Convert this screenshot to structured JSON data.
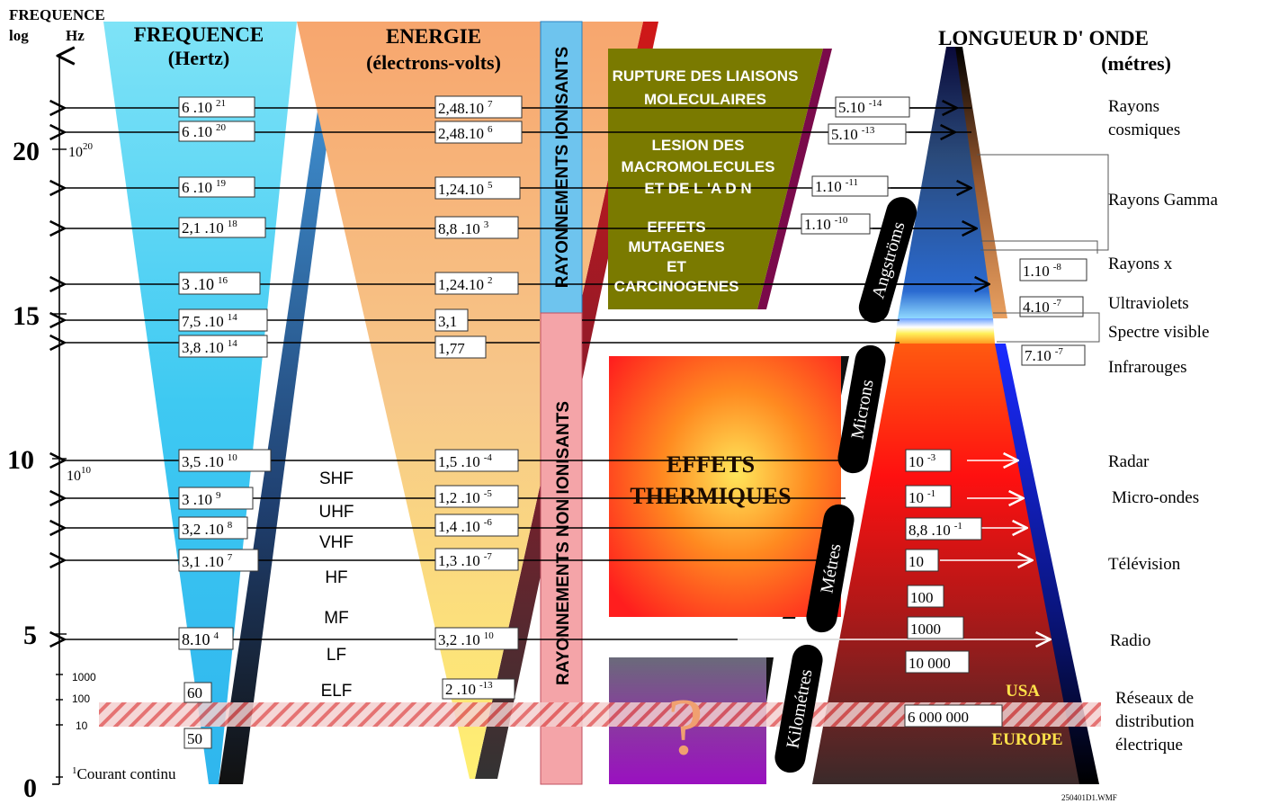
{
  "header": {
    "axis_title": "FREQUENCE",
    "axis_log": "log",
    "axis_hz": "Hz",
    "freq_title": "FREQUENCE",
    "freq_unit": "(Hertz)",
    "energy_title": "ENERGIE",
    "energy_unit": "(électrons-volts)",
    "wave_title": "LONGUEUR D' ONDE",
    "wave_unit": "(métres)"
  },
  "axis": {
    "major_ticks": [
      "20",
      "15",
      "10",
      "5",
      "0"
    ],
    "label_1e20": "10",
    "label_1e20_exp": "20",
    "label_1e10": "10",
    "label_1e10_exp": "10",
    "minor_ticks": [
      "1000",
      "100",
      "10"
    ],
    "dc_prefix": "1",
    "dc_label": "Courant continu"
  },
  "frequencies": [
    {
      "base": "6 .10",
      "exp": "21"
    },
    {
      "base": "6 .10",
      "exp": "20"
    },
    {
      "base": "6 .10",
      "exp": "19"
    },
    {
      "base": "2,1 .10",
      "exp": "18"
    },
    {
      "base": "3 .10",
      "exp": "16"
    },
    {
      "base": "7,5 .10",
      "exp": "14"
    },
    {
      "base": "3,8 .10",
      "exp": "14"
    },
    {
      "base": "3,5 .10",
      "exp": "10"
    },
    {
      "base": "3 .10",
      "exp": "9"
    },
    {
      "base": "3,2 .10",
      "exp": "8"
    },
    {
      "base": "3,1 .10",
      "exp": "7"
    },
    {
      "base": "8.10",
      "exp": "4"
    },
    {
      "base": "60",
      "exp": ""
    },
    {
      "base": "50",
      "exp": ""
    }
  ],
  "energies": [
    {
      "base": "2,48.10",
      "exp": "7"
    },
    {
      "base": "2,48.10",
      "exp": "6"
    },
    {
      "base": "1,24.10",
      "exp": "5"
    },
    {
      "base": "8,8 .10",
      "exp": "3"
    },
    {
      "base": "1,24.10",
      "exp": "2"
    },
    {
      "base": "3,1",
      "exp": ""
    },
    {
      "base": "1,77",
      "exp": ""
    },
    {
      "base": "1,5 .10",
      "exp": "-4"
    },
    {
      "base": "1,2 .10",
      "exp": "-5"
    },
    {
      "base": "1,4 .10",
      "exp": "-6"
    },
    {
      "base": "1,3 .10",
      "exp": "-7"
    },
    {
      "base": "3,2 .10",
      "exp": "10"
    },
    {
      "base": "2 .10",
      "exp": "-13"
    }
  ],
  "bands": [
    "SHF",
    "UHF",
    "VHF",
    "HF",
    "MF",
    "LF",
    "ELF"
  ],
  "radiation": {
    "ionizing": "RAYONNEMENTS IONISANTS",
    "non_ionizing": "RAYONNEMENTS NON IONISANTS"
  },
  "effects": {
    "rupture_1": "RUPTURE DES LIAISONS",
    "rupture_2": "MOLECULAIRES",
    "lesion_1": "LESION DES",
    "lesion_2": "MACROMOLECULES",
    "lesion_3": "ET DE L 'A D N",
    "muta_1": "EFFETS",
    "muta_2": "MUTAGENES",
    "muta_3": "ET",
    "muta_4": "CARCINOGENES",
    "thermal_1": "EFFETS",
    "thermal_2": "THERMIQUES",
    "unknown": "?"
  },
  "scales": [
    "Angströms",
    "Microns",
    "Métres",
    "Kilométres"
  ],
  "wavelengths": [
    {
      "base": "5.10",
      "exp": "-14"
    },
    {
      "base": "5.10",
      "exp": "-13"
    },
    {
      "base": "1.10",
      "exp": "-11"
    },
    {
      "base": "1.10",
      "exp": "-10"
    },
    {
      "base": "1.10",
      "exp": "-8"
    },
    {
      "base": "4.10",
      "exp": "-7"
    },
    {
      "base": "7.10",
      "exp": "-7"
    },
    {
      "base": "10",
      "exp": "-3"
    },
    {
      "base": "10",
      "exp": "-1"
    },
    {
      "base": "8,8 .10",
      "exp": "-1"
    },
    {
      "base": "10",
      "exp": ""
    },
    {
      "base": "100",
      "exp": ""
    },
    {
      "base": "1000",
      "exp": ""
    },
    {
      "base": "10 000",
      "exp": ""
    },
    {
      "base": "6 000 000",
      "exp": ""
    }
  ],
  "categories": [
    [
      "Rayons",
      "cosmiques"
    ],
    [
      "Rayons Gamma"
    ],
    [
      "Rayons x"
    ],
    [
      "Ultraviolets"
    ],
    [
      "Spectre visible"
    ],
    [
      "Infrarouges"
    ],
    [
      "Radar"
    ],
    [
      "Micro-ondes"
    ],
    [
      "Télévision"
    ],
    [
      "Radio"
    ],
    [
      "Réseaux de",
      "distribution",
      "électrique"
    ]
  ],
  "grid": {
    "usa": "USA",
    "europe": "EUROPE"
  },
  "footer": "250401D1.WMF",
  "colors": {
    "freq": "#4fd0f5",
    "energy": "#f7b97c",
    "ionizing": "#73c7ee",
    "non_ionizing": "#f4a0a4",
    "effects_olive": "#7a7a00",
    "red_stripe": "#c8102e"
  }
}
